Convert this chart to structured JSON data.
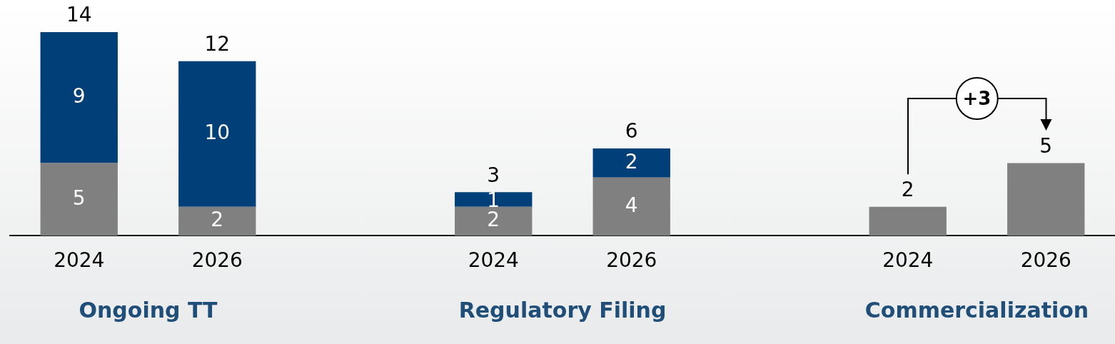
{
  "chart_data": {
    "type": "bar",
    "stacked": true,
    "categories": [
      "2024",
      "2026",
      null,
      "2024",
      "2026",
      null,
      "2024",
      "2026"
    ],
    "series": [
      {
        "color": "#808080",
        "values": [
          5,
          2,
          null,
          2,
          4,
          null,
          2,
          5
        ],
        "value_labels": [
          "5",
          "2",
          null,
          "2",
          "4",
          null,
          null,
          null
        ]
      },
      {
        "color": "#003f77",
        "values": [
          9,
          10,
          null,
          1,
          2,
          null,
          null,
          null
        ],
        "value_labels": [
          "9",
          "10",
          null,
          "1",
          "2",
          null,
          null,
          null
        ]
      }
    ],
    "totals": [
      "14",
      "12",
      null,
      "3",
      "6",
      null,
      "2",
      "5"
    ],
    "annotations": [
      "Ongoing TT",
      "Regulatory Filing",
      "Commercialization",
      "+3"
    ],
    "grid": false,
    "legend": false
  }
}
